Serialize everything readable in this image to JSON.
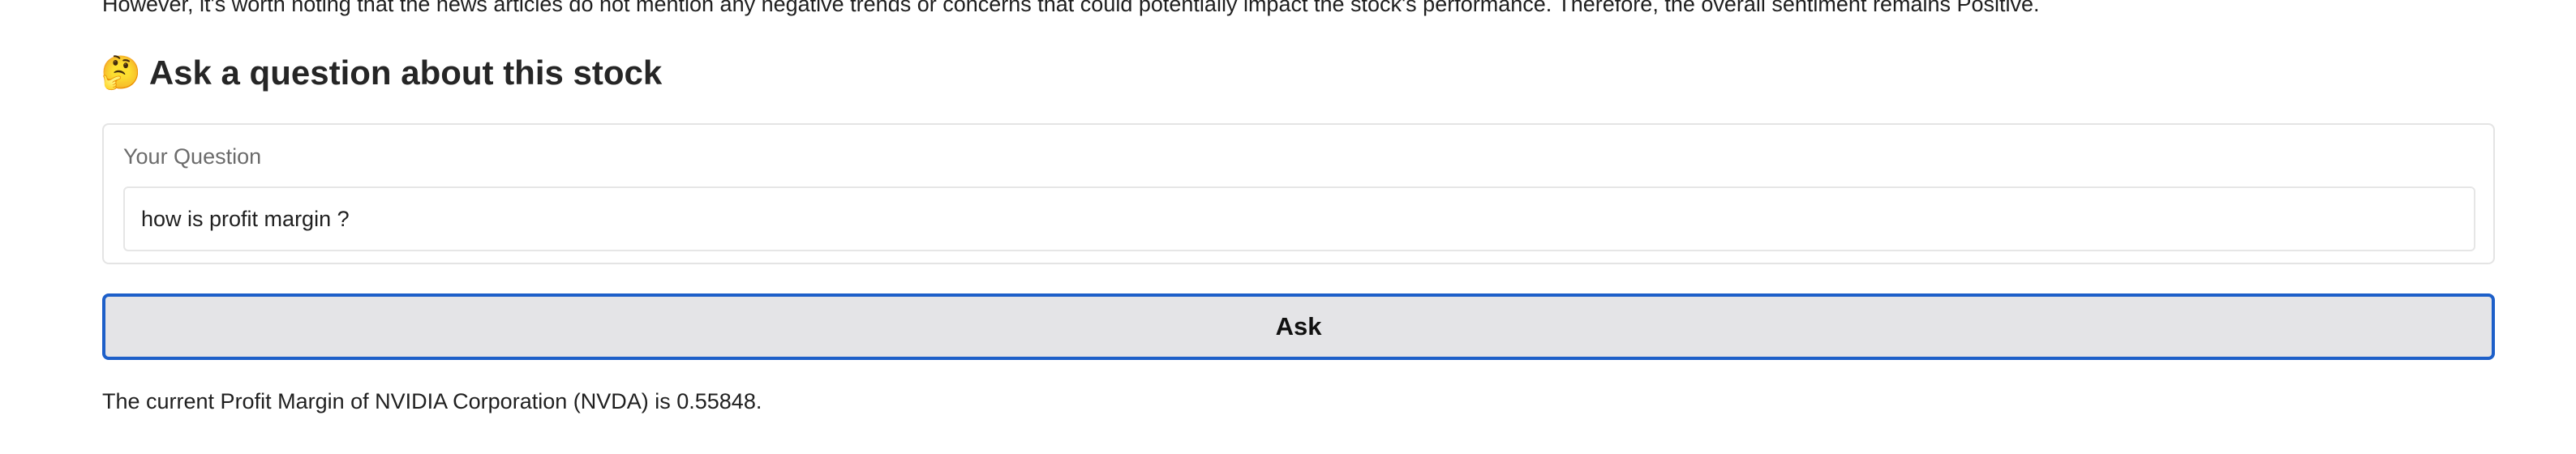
{
  "sentiment_summary": {
    "text": "However, it's worth noting that the news articles do not mention any negative trends or concerns that could potentially impact the stock's performance. Therefore, the overall sentiment remains Positive."
  },
  "question_section": {
    "icon": "🤔",
    "icon_name": "thinking-face-icon",
    "heading": "Ask a question about this stock",
    "field_label": "Your Question",
    "input_value": "how is profit margin ?",
    "button_label": "Ask"
  },
  "answer": {
    "text": "The current Profit Margin of NVIDIA Corporation (NVDA) is 0.55848."
  },
  "colors": {
    "button_border": "#1d5fc9",
    "button_background": "#e4e4e7",
    "panel_border": "#e4e4e4"
  }
}
